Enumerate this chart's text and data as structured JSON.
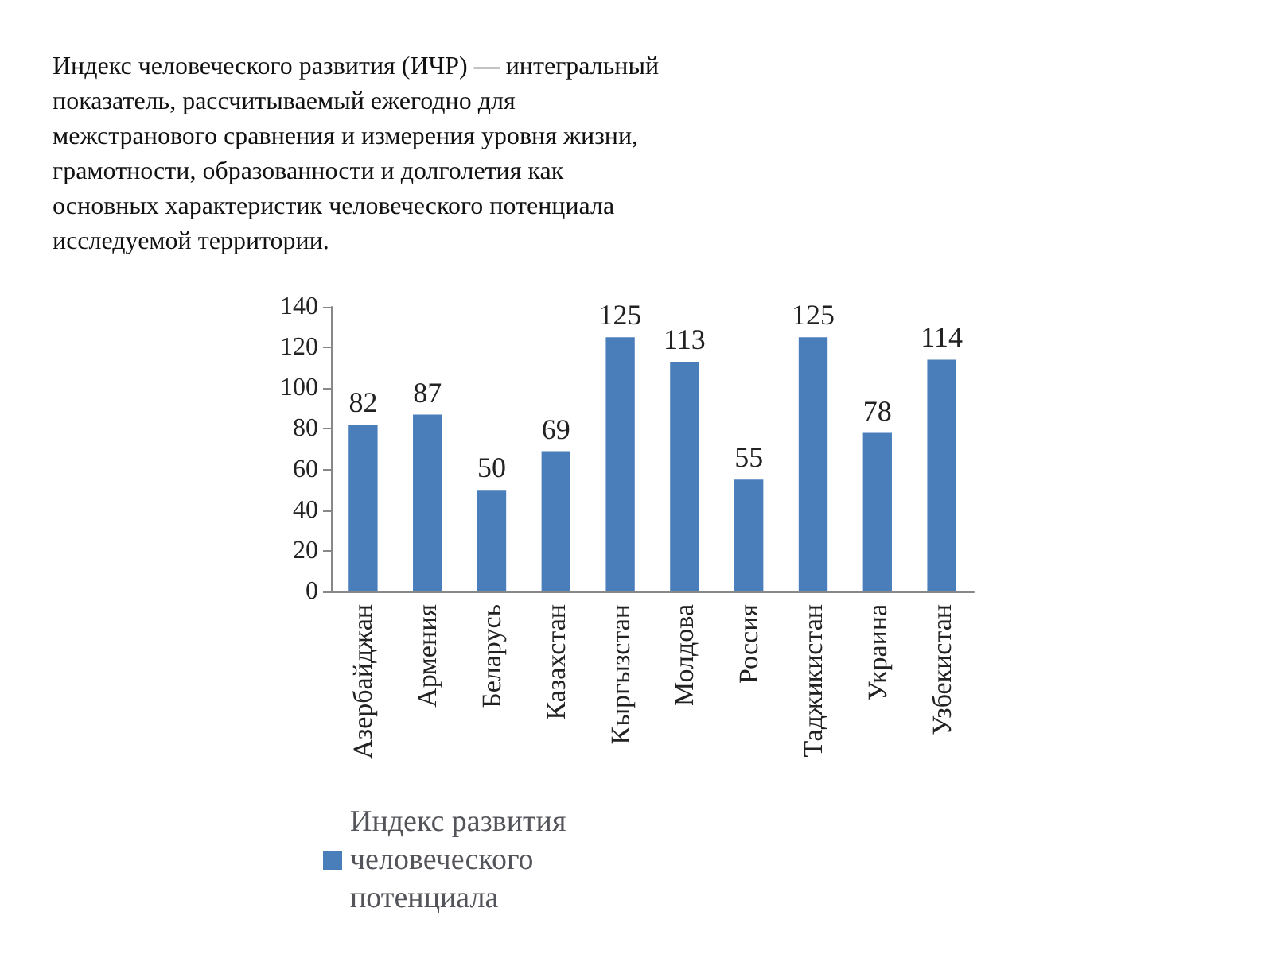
{
  "chart_data": {
    "type": "bar",
    "title": "Индекс человеческого развития (ИЧР) — интегральный показатель, рассчитываемый ежегодно для межстранового сравнения и измерения уровня жизни, грамотности, образованности и долголетия как основных характеристик человеческого потенциала исследуемой территории.",
    "categories": [
      "Азербайджан",
      "Армения",
      "Беларусь",
      "Казахстан",
      "Кыргызстан",
      "Молдова",
      "Россия",
      "Таджикистан",
      "Украина",
      "Узбекистан"
    ],
    "series": [
      {
        "name": "Индекс развития человеческого потенциала",
        "color": "#4a7ebb",
        "values": [
          82,
          87,
          50,
          69,
          125,
          113,
          55,
          125,
          78,
          114
        ]
      }
    ],
    "ylim": [
      0,
      140
    ],
    "yticks": [
      0,
      20,
      40,
      60,
      80,
      100,
      120,
      140
    ],
    "data_labels": true,
    "grid": false,
    "legend": "bottom"
  }
}
